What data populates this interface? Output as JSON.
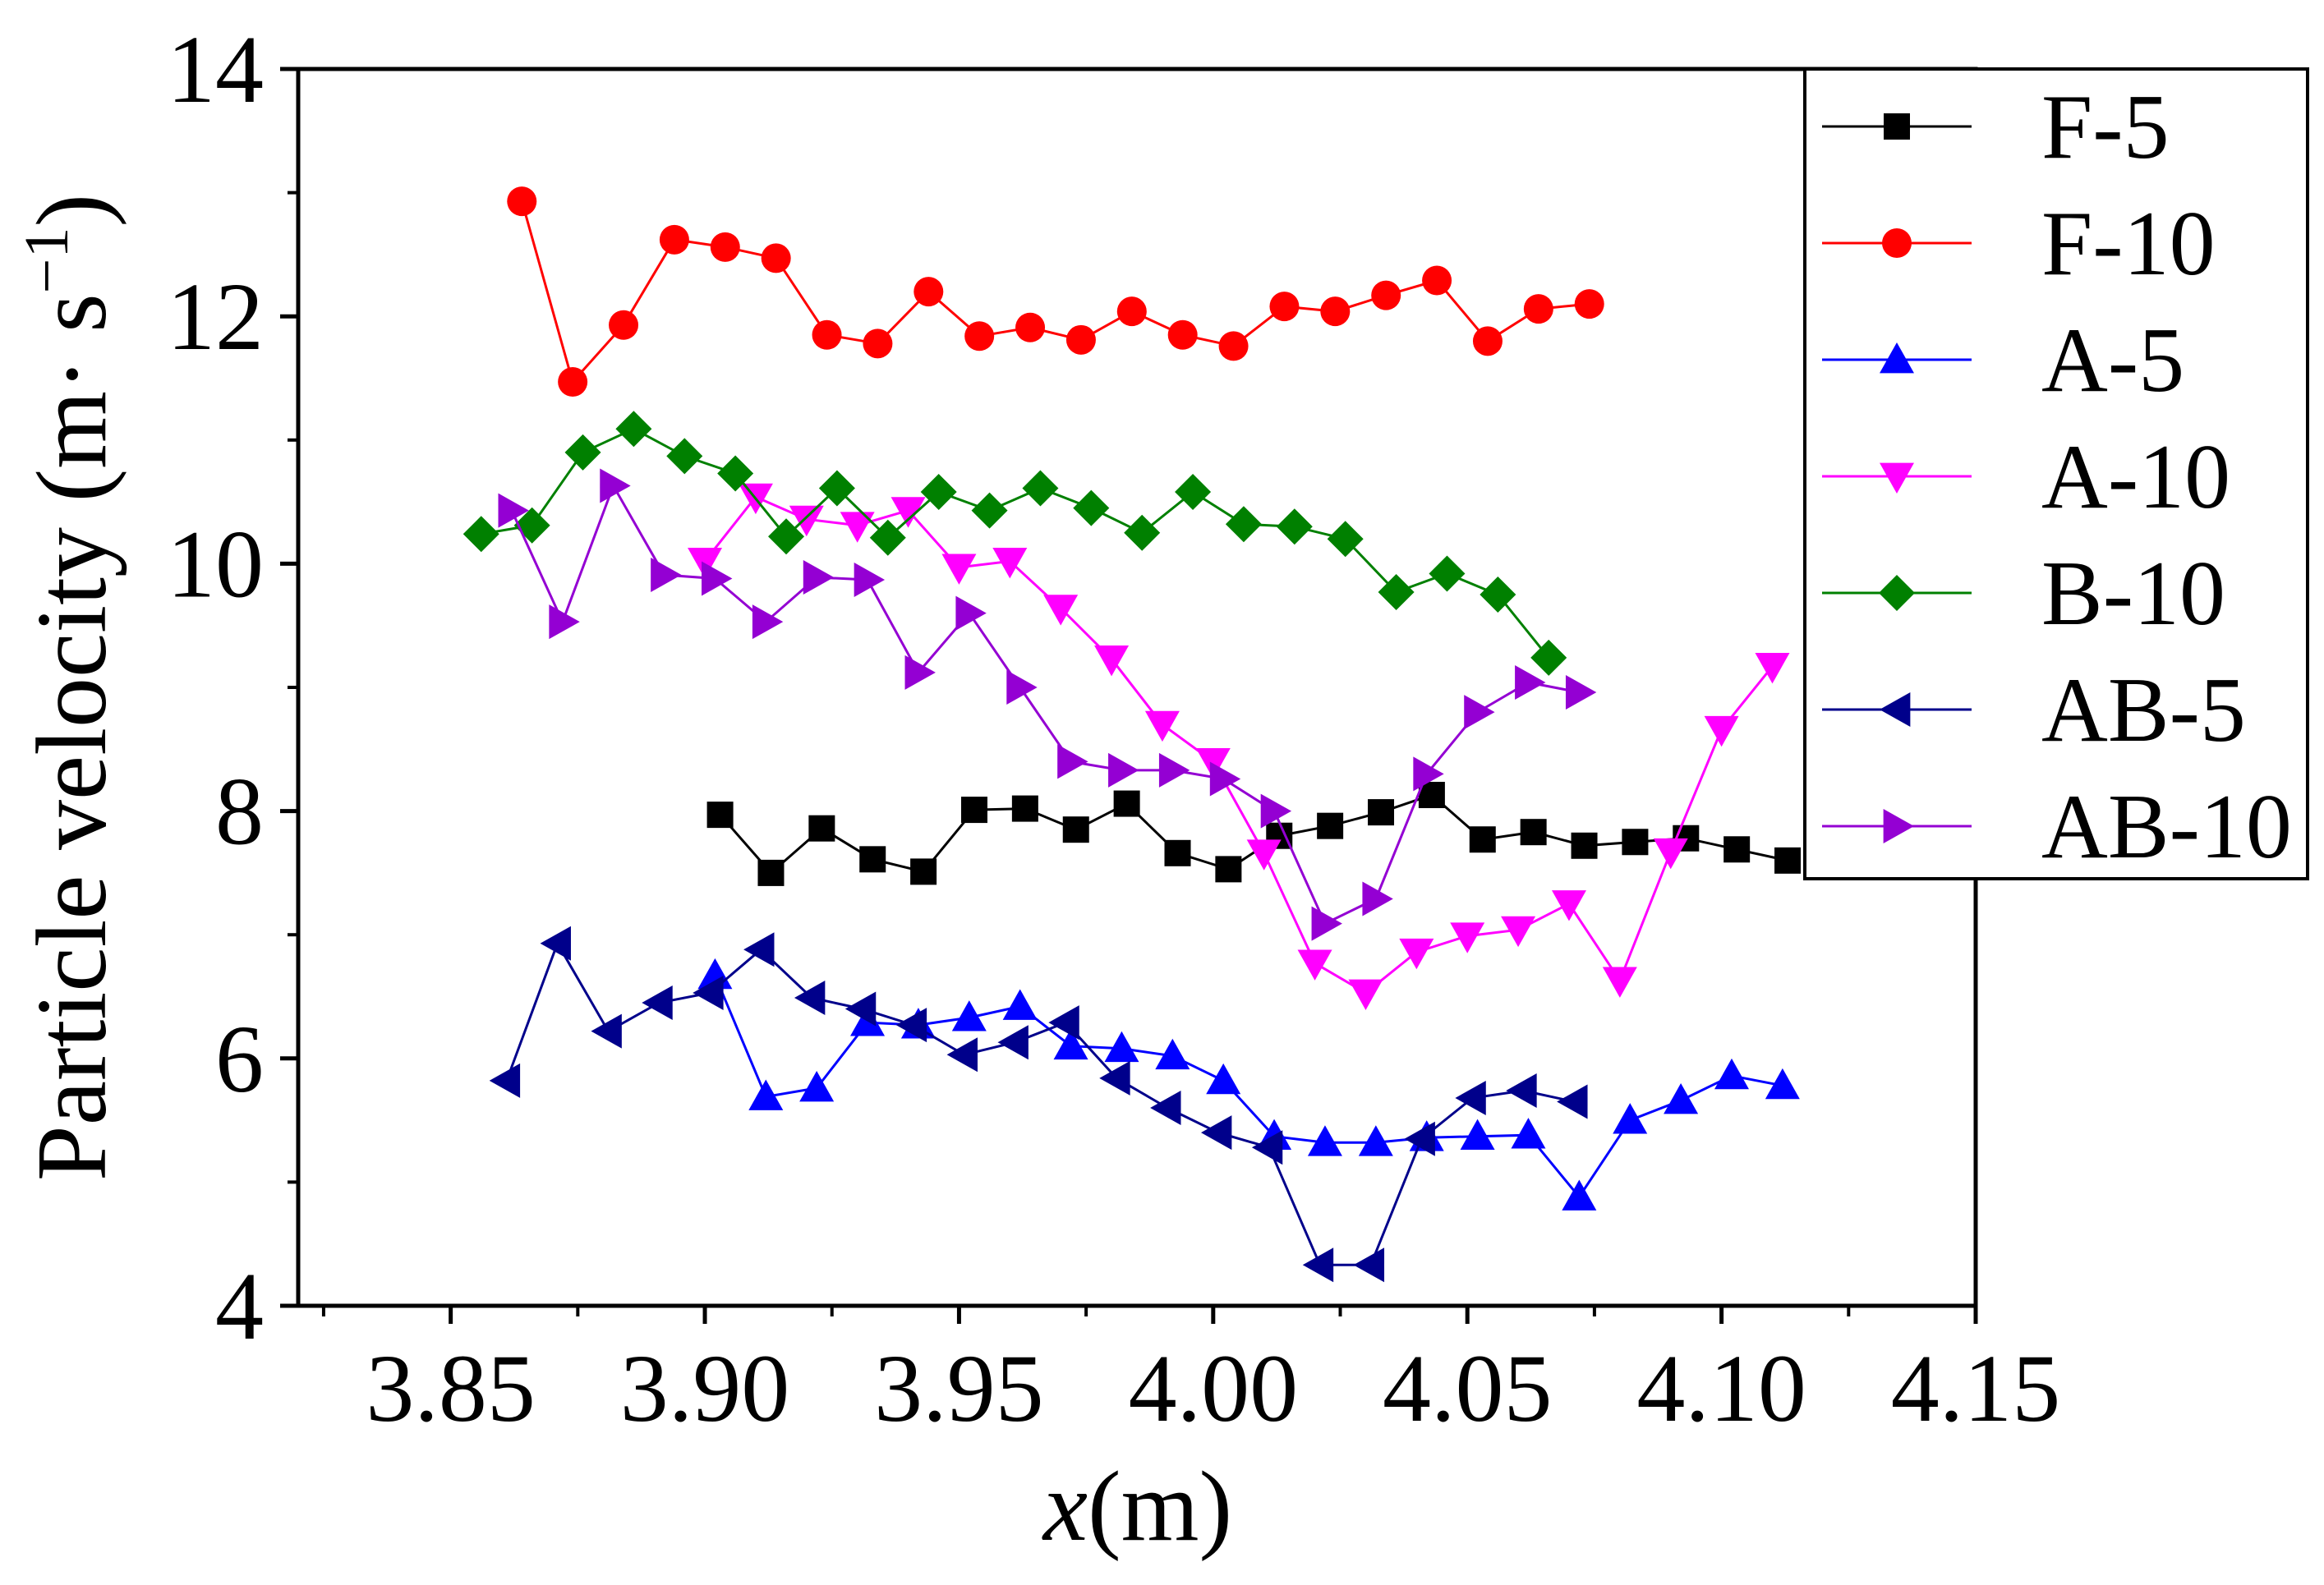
{
  "chart_data": {
    "type": "line",
    "title": "",
    "xlabel": "x(m)",
    "xlabel_var": "x",
    "xlabel_unit": "(m)",
    "ylabel": "Particle velocity (m· s−1)",
    "ylabel_main": "Particle velocity (m",
    "ylabel_dot": "·",
    "ylabel_s": " s",
    "ylabel_exp": "−1",
    "ylabel_close": ")",
    "xlim": [
      3.82,
      4.15
    ],
    "ylim": [
      4,
      14
    ],
    "xticks": [
      3.85,
      3.9,
      3.95,
      4.0,
      4.05,
      4.1,
      4.15
    ],
    "xtick_labels": [
      "3.85",
      "3.90",
      "3.95",
      "4.00",
      "4.05",
      "4.10",
      "4.15"
    ],
    "yticks": [
      4,
      6,
      8,
      10,
      12,
      14
    ],
    "ytick_labels": [
      "4",
      "6",
      "8",
      "10",
      "12",
      "14"
    ],
    "grid": false,
    "legend_position": "top-right",
    "series": [
      {
        "name": "F-5",
        "color": "#000000",
        "marker": "square",
        "x": [
          3.903,
          3.913,
          3.923,
          3.933,
          3.943,
          3.953,
          3.963,
          3.973,
          3.983,
          3.993,
          4.003,
          4.013,
          4.023,
          4.033,
          4.043,
          4.053,
          4.063,
          4.073,
          4.083,
          4.093,
          4.103,
          4.113
        ],
        "y": [
          7.97,
          7.5,
          7.86,
          7.61,
          7.51,
          8.01,
          8.02,
          7.85,
          8.06,
          7.66,
          7.53,
          7.8,
          7.88,
          7.99,
          8.13,
          7.77,
          7.83,
          7.72,
          7.75,
          7.78,
          7.69,
          7.6
        ]
      },
      {
        "name": "F-10",
        "color": "#ff0000",
        "marker": "circle",
        "x": [
          3.864,
          3.874,
          3.884,
          3.894,
          3.904,
          3.914,
          3.924,
          3.934,
          3.944,
          3.954,
          3.964,
          3.974,
          3.984,
          3.994,
          4.004,
          4.014,
          4.024,
          4.034,
          4.044,
          4.054,
          4.064,
          4.074
        ],
        "y": [
          12.93,
          11.47,
          11.93,
          12.62,
          12.56,
          12.47,
          11.85,
          11.78,
          12.2,
          11.84,
          11.91,
          11.81,
          12.04,
          11.85,
          11.76,
          12.08,
          12.04,
          12.17,
          12.29,
          11.8,
          12.06,
          12.1
        ]
      },
      {
        "name": "A-5",
        "color": "#0000ff",
        "marker": "triangle-up",
        "x": [
          3.902,
          3.912,
          3.922,
          3.932,
          3.942,
          3.952,
          3.962,
          3.972,
          3.982,
          3.992,
          4.002,
          4.012,
          4.022,
          4.032,
          4.042,
          4.052,
          4.062,
          4.072,
          4.082,
          4.092,
          4.102,
          4.112
        ],
        "y": [
          6.67,
          5.69,
          5.76,
          6.29,
          6.27,
          6.33,
          6.42,
          6.1,
          6.08,
          6.02,
          5.82,
          5.37,
          5.32,
          5.32,
          5.36,
          5.37,
          5.38,
          4.88,
          5.5,
          5.66,
          5.86,
          5.78
        ]
      },
      {
        "name": "A-10",
        "color": "#ff00ff",
        "marker": "triangle-down",
        "x": [
          3.9,
          3.91,
          3.92,
          3.93,
          3.94,
          3.95,
          3.96,
          3.97,
          3.98,
          3.99,
          4.0,
          4.01,
          4.02,
          4.03,
          4.04,
          4.05,
          4.06,
          4.07,
          4.08,
          4.09,
          4.1,
          4.11
        ],
        "y": [
          10.02,
          10.54,
          10.36,
          10.31,
          10.43,
          9.97,
          10.02,
          9.64,
          9.23,
          8.7,
          8.4,
          7.66,
          6.77,
          6.53,
          6.86,
          6.99,
          7.04,
          7.25,
          6.63,
          7.67,
          8.66,
          9.17
        ]
      },
      {
        "name": "B-10",
        "color": "#008000",
        "marker": "diamond",
        "x": [
          3.856,
          3.866,
          3.876,
          3.886,
          3.896,
          3.906,
          3.916,
          3.926,
          3.936,
          3.946,
          3.956,
          3.966,
          3.976,
          3.986,
          3.996,
          4.006,
          4.016,
          4.026,
          4.036,
          4.046,
          4.056,
          4.066
        ],
        "y": [
          10.24,
          10.31,
          10.9,
          11.09,
          10.87,
          10.73,
          10.22,
          10.61,
          10.21,
          10.58,
          10.43,
          10.61,
          10.45,
          10.25,
          10.58,
          10.32,
          10.3,
          10.2,
          9.77,
          9.92,
          9.75,
          9.24
        ]
      },
      {
        "name": "AB-5",
        "color": "#00008b",
        "marker": "triangle-left",
        "x": [
          3.861,
          3.871,
          3.881,
          3.891,
          3.901,
          3.911,
          3.921,
          3.931,
          3.941,
          3.951,
          3.961,
          3.971,
          3.981,
          3.991,
          4.001,
          4.011,
          4.021,
          4.031,
          4.041,
          4.051,
          4.061,
          4.071
        ],
        "y": [
          5.82,
          6.93,
          6.22,
          6.45,
          6.53,
          6.88,
          6.49,
          6.4,
          6.27,
          6.03,
          6.13,
          6.29,
          5.84,
          5.6,
          5.4,
          5.28,
          4.33,
          4.33,
          5.35,
          5.68,
          5.74,
          5.65
        ]
      },
      {
        "name": "AB-10",
        "color": "#9400d3",
        "marker": "triangle-right",
        "x": [
          3.862,
          3.872,
          3.882,
          3.892,
          3.902,
          3.912,
          3.922,
          3.932,
          3.942,
          3.952,
          3.962,
          3.972,
          3.982,
          3.992,
          4.002,
          4.012,
          4.022,
          4.032,
          4.042,
          4.052,
          4.062,
          4.072
        ],
        "y": [
          10.43,
          9.53,
          10.63,
          9.91,
          9.88,
          9.53,
          9.89,
          9.87,
          9.12,
          9.6,
          9.0,
          8.4,
          8.33,
          8.33,
          8.26,
          8.0,
          7.09,
          7.29,
          8.3,
          8.8,
          9.04,
          8.96
        ]
      }
    ]
  }
}
